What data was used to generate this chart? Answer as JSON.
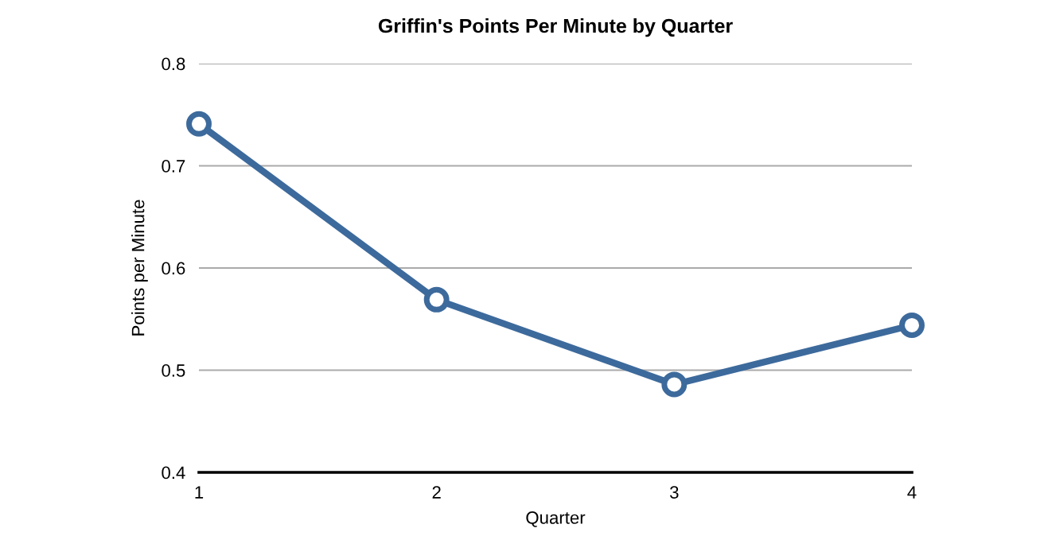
{
  "chart_data": {
    "type": "line",
    "title": "Griffin's Points Per Minute by Quarter",
    "xlabel": "Quarter",
    "ylabel": "Points per Minute",
    "x": [
      1,
      2,
      3,
      4
    ],
    "xlim": [
      1,
      4
    ],
    "xticks": [
      1,
      2,
      3,
      4
    ],
    "ylim": [
      0.4,
      0.8
    ],
    "yticks": [
      0.4,
      0.5,
      0.6,
      0.7,
      0.8
    ],
    "series": [
      {
        "color": "#3d6a9c",
        "values": [
          0.741,
          0.569,
          0.486,
          0.544
        ]
      }
    ],
    "marker": "circle",
    "line_style": "solid",
    "grid": "y",
    "legend": false
  }
}
